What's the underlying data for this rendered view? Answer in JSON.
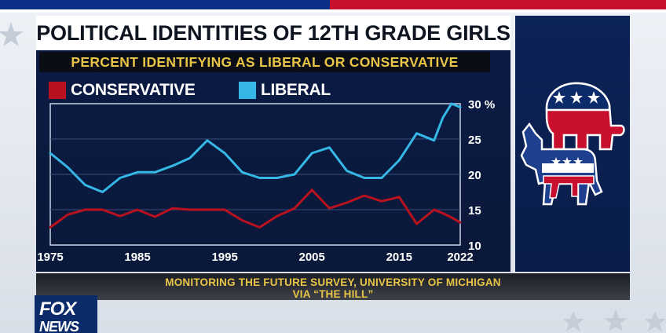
{
  "title": "POLITICAL IDENTITIES OF 12TH GRADE GIRLS",
  "subtitle": "PERCENT IDENTIFYING AS LIBERAL OR CONSERVATIVE",
  "source": {
    "line1": "MONITORING THE FUTURE SURVEY, UNIVERSITY OF MICHIGAN",
    "line2": "VIA “THE HILL”"
  },
  "network": {
    "logo_top": "FOX",
    "logo_bottom": "NEWS"
  },
  "colors": {
    "conservative": "#b8121f",
    "liberal": "#36b8e6",
    "tick_text": "#ffffff",
    "subtitle_text": "#e8c547"
  },
  "icons": [
    "republican-elephant-icon",
    "democratic-donkey-icon"
  ],
  "chart_data": {
    "type": "line",
    "x": [
      1975,
      1977,
      1979,
      1981,
      1983,
      1985,
      1987,
      1989,
      1991,
      1993,
      1995,
      1997,
      1999,
      2001,
      2003,
      2005,
      2007,
      2009,
      2011,
      2013,
      2015,
      2017,
      2019,
      2020,
      2021,
      2022
    ],
    "series": [
      {
        "name": "CONSERVATIVE",
        "color": "#b8121f",
        "values": [
          12.5,
          14.3,
          15.0,
          15.0,
          14.1,
          15.0,
          14.0,
          15.2,
          15.0,
          15.0,
          15.0,
          13.5,
          12.5,
          14.1,
          15.2,
          17.8,
          15.2,
          16.0,
          17.0,
          16.2,
          16.8,
          13.0,
          15.0,
          14.5,
          13.9,
          13.2
        ]
      },
      {
        "name": "LIBERAL",
        "color": "#36b8e6",
        "values": [
          23.0,
          21.0,
          18.5,
          17.5,
          19.5,
          20.3,
          20.3,
          21.2,
          22.3,
          24.8,
          23.0,
          20.3,
          19.5,
          19.5,
          20.0,
          23.0,
          23.8,
          20.5,
          19.5,
          19.5,
          22.0,
          25.8,
          24.8,
          28.0,
          30.0,
          29.5
        ]
      }
    ],
    "x_ticks": [
      "1975",
      "1985",
      "1995",
      "2005",
      "2015",
      "2022"
    ],
    "x_tick_values": [
      1975,
      1985,
      1995,
      2005,
      2015,
      2022
    ],
    "y_ticks": [
      "10",
      "15",
      "20",
      "25",
      "30 %"
    ],
    "y_tick_values": [
      10,
      15,
      20,
      25,
      30
    ],
    "ylim": [
      10,
      30
    ],
    "xlim": [
      1975,
      2022
    ],
    "grid": true,
    "legend": "top-left"
  }
}
